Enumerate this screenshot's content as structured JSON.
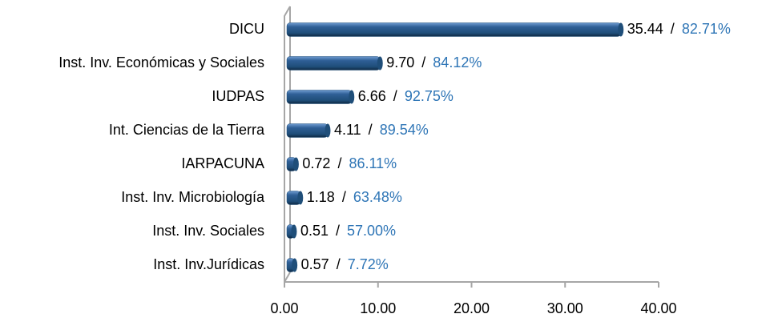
{
  "chart_data": {
    "type": "bar",
    "orientation": "horizontal",
    "categories": [
      "DICU",
      "Inst. Inv. Económicas y Sociales",
      "IUDPAS",
      "Int. Ciencias de la Tierra",
      "IARPACUNA",
      "Inst. Inv. Microbiología",
      "Inst. Inv. Sociales",
      "Inst. Inv.Jurídicas"
    ],
    "values": [
      35.44,
      9.7,
      6.66,
      4.11,
      0.72,
      1.18,
      0.51,
      0.57
    ],
    "value_labels": [
      "35.44",
      "9.70",
      "6.66",
      "4.11",
      "0.72",
      "1.18",
      "0.51",
      "0.57"
    ],
    "label_separator": "/",
    "shares": [
      82.71,
      84.12,
      92.75,
      89.54,
      86.11,
      63.48,
      57.0,
      7.72
    ],
    "share_labels": [
      "82.71%",
      "84.12%",
      "92.75%",
      "89.54%",
      "86.11%",
      "63.48%",
      "57.00%",
      "7.72%"
    ],
    "color": "#1f4e79",
    "share_color": "#2e75b6",
    "xlim": [
      0,
      40
    ],
    "xticks": [
      {
        "value": 0,
        "label": "0.00"
      },
      {
        "value": 10,
        "label": "10.00"
      },
      {
        "value": 20,
        "label": "20.00"
      },
      {
        "value": 30,
        "label": "30.00"
      },
      {
        "value": 40,
        "label": "40.00"
      }
    ]
  }
}
